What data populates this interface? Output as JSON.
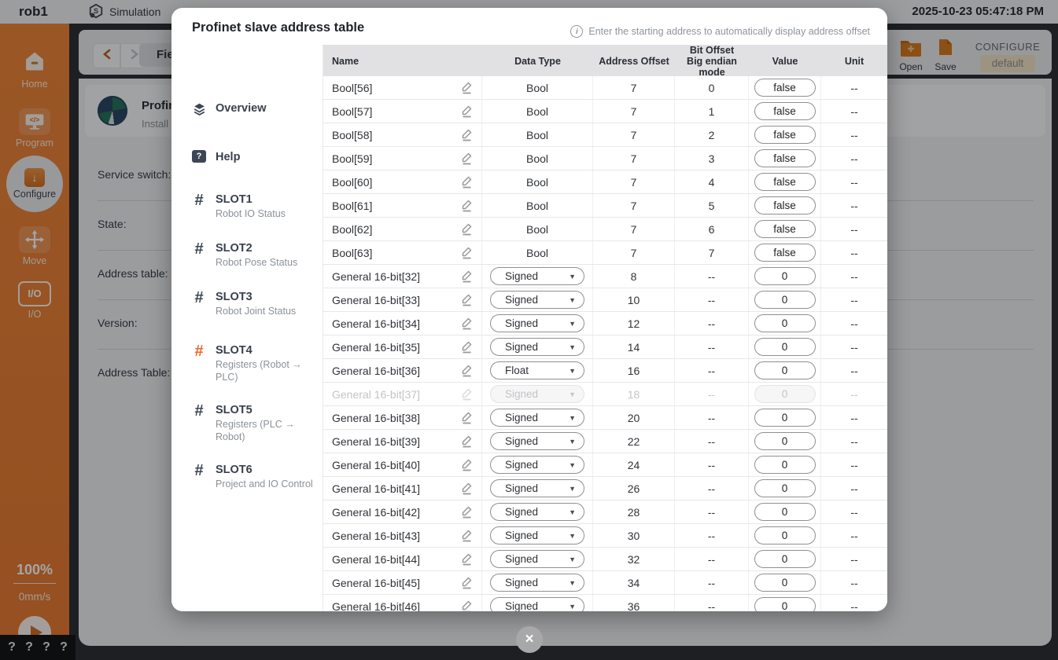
{
  "chrome": {
    "robot_name": "rob1",
    "mode_label": "Simulation",
    "datetime": "2025-10-23 05:47:18 PM",
    "field_label": "Field",
    "open_label": "Open",
    "save_label": "Save",
    "configure_label": "CONFIGURE",
    "configure_value": "default",
    "speed_percent": "100%",
    "speed_value": "0mm/s",
    "help_marks": [
      "?",
      "?",
      "?",
      "?"
    ]
  },
  "sidebar": {
    "items": [
      {
        "label": "Home"
      },
      {
        "label": "Program"
      },
      {
        "label": "Configure",
        "active": true
      },
      {
        "label": "Move"
      },
      {
        "label": "I/O"
      }
    ]
  },
  "background_page": {
    "device_title": "Profinet",
    "device_subtitle": "Install",
    "fields": [
      "Service switch:",
      "State:",
      "Address table:",
      "Version:",
      "Address Table:"
    ]
  },
  "modal": {
    "title": "Profinet slave address table",
    "hint": "Enter the starting address to automatically display address offset",
    "nav": [
      {
        "label": "Overview",
        "sub": "",
        "icon": "layers"
      },
      {
        "label": "Help",
        "sub": "",
        "icon": "help"
      },
      {
        "label": "SLOT1",
        "sub": "Robot IO Status",
        "icon": "hash"
      },
      {
        "label": "SLOT2",
        "sub": "Robot Pose Status",
        "icon": "hash"
      },
      {
        "label": "SLOT3",
        "sub": "Robot Joint Status",
        "icon": "hash"
      },
      {
        "label": "SLOT4",
        "sub": "Registers (Robot → PLC)",
        "icon": "hash",
        "active": true
      },
      {
        "label": "SLOT5",
        "sub": "Registers (PLC → Robot)",
        "icon": "hash"
      },
      {
        "label": "SLOT6",
        "sub": "Project and IO Control",
        "icon": "hash"
      }
    ],
    "table": {
      "headers": {
        "name": "Name",
        "data_type": "Data Type",
        "address_offset": "Address Offset",
        "bit_offset_line1": "Bit Offset",
        "bit_offset_line2": "Big endian mode",
        "value": "Value",
        "unit": "Unit"
      },
      "rows": [
        {
          "name": "Bool[56]",
          "type": "Bool",
          "control": "text",
          "addr": "7",
          "bit": "0",
          "value": "false",
          "unit": "--"
        },
        {
          "name": "Bool[57]",
          "type": "Bool",
          "control": "text",
          "addr": "7",
          "bit": "1",
          "value": "false",
          "unit": "--"
        },
        {
          "name": "Bool[58]",
          "type": "Bool",
          "control": "text",
          "addr": "7",
          "bit": "2",
          "value": "false",
          "unit": "--"
        },
        {
          "name": "Bool[59]",
          "type": "Bool",
          "control": "text",
          "addr": "7",
          "bit": "3",
          "value": "false",
          "unit": "--"
        },
        {
          "name": "Bool[60]",
          "type": "Bool",
          "control": "text",
          "addr": "7",
          "bit": "4",
          "value": "false",
          "unit": "--"
        },
        {
          "name": "Bool[61]",
          "type": "Bool",
          "control": "text",
          "addr": "7",
          "bit": "5",
          "value": "false",
          "unit": "--"
        },
        {
          "name": "Bool[62]",
          "type": "Bool",
          "control": "text",
          "addr": "7",
          "bit": "6",
          "value": "false",
          "unit": "--"
        },
        {
          "name": "Bool[63]",
          "type": "Bool",
          "control": "text",
          "addr": "7",
          "bit": "7",
          "value": "false",
          "unit": "--"
        },
        {
          "name": "General 16-bit[32]",
          "type": "Signed",
          "control": "select",
          "addr": "8",
          "bit": "--",
          "value": "0",
          "unit": "--"
        },
        {
          "name": "General 16-bit[33]",
          "type": "Signed",
          "control": "select",
          "addr": "10",
          "bit": "--",
          "value": "0",
          "unit": "--"
        },
        {
          "name": "General 16-bit[34]",
          "type": "Signed",
          "control": "select",
          "addr": "12",
          "bit": "--",
          "value": "0",
          "unit": "--"
        },
        {
          "name": "General 16-bit[35]",
          "type": "Signed",
          "control": "select",
          "addr": "14",
          "bit": "--",
          "value": "0",
          "unit": "--"
        },
        {
          "name": "General 16-bit[36]",
          "type": "Float",
          "control": "select",
          "addr": "16",
          "bit": "--",
          "value": "0",
          "unit": "--"
        },
        {
          "name": "General 16-bit[37]",
          "type": "Signed",
          "control": "select",
          "addr": "18",
          "bit": "--",
          "value": "0",
          "unit": "--",
          "disabled": true
        },
        {
          "name": "General 16-bit[38]",
          "type": "Signed",
          "control": "select",
          "addr": "20",
          "bit": "--",
          "value": "0",
          "unit": "--"
        },
        {
          "name": "General 16-bit[39]",
          "type": "Signed",
          "control": "select",
          "addr": "22",
          "bit": "--",
          "value": "0",
          "unit": "--"
        },
        {
          "name": "General 16-bit[40]",
          "type": "Signed",
          "control": "select",
          "addr": "24",
          "bit": "--",
          "value": "0",
          "unit": "--"
        },
        {
          "name": "General 16-bit[41]",
          "type": "Signed",
          "control": "select",
          "addr": "26",
          "bit": "--",
          "value": "0",
          "unit": "--"
        },
        {
          "name": "General 16-bit[42]",
          "type": "Signed",
          "control": "select",
          "addr": "28",
          "bit": "--",
          "value": "0",
          "unit": "--"
        },
        {
          "name": "General 16-bit[43]",
          "type": "Signed",
          "control": "select",
          "addr": "30",
          "bit": "--",
          "value": "0",
          "unit": "--"
        },
        {
          "name": "General 16-bit[44]",
          "type": "Signed",
          "control": "select",
          "addr": "32",
          "bit": "--",
          "value": "0",
          "unit": "--"
        },
        {
          "name": "General 16-bit[45]",
          "type": "Signed",
          "control": "select",
          "addr": "34",
          "bit": "--",
          "value": "0",
          "unit": "--"
        },
        {
          "name": "General 16-bit[46]",
          "type": "Signed",
          "control": "select",
          "addr": "36",
          "bit": "--",
          "value": "0",
          "unit": "--"
        }
      ]
    }
  },
  "colors": {
    "accent_orange": "#ED7D2B",
    "active_nav_bg": "#FDEEE1",
    "active_hash": "#F2652A",
    "table_header_bg": "#E1E1E3",
    "default_badge_bg": "#F3E2C4"
  }
}
